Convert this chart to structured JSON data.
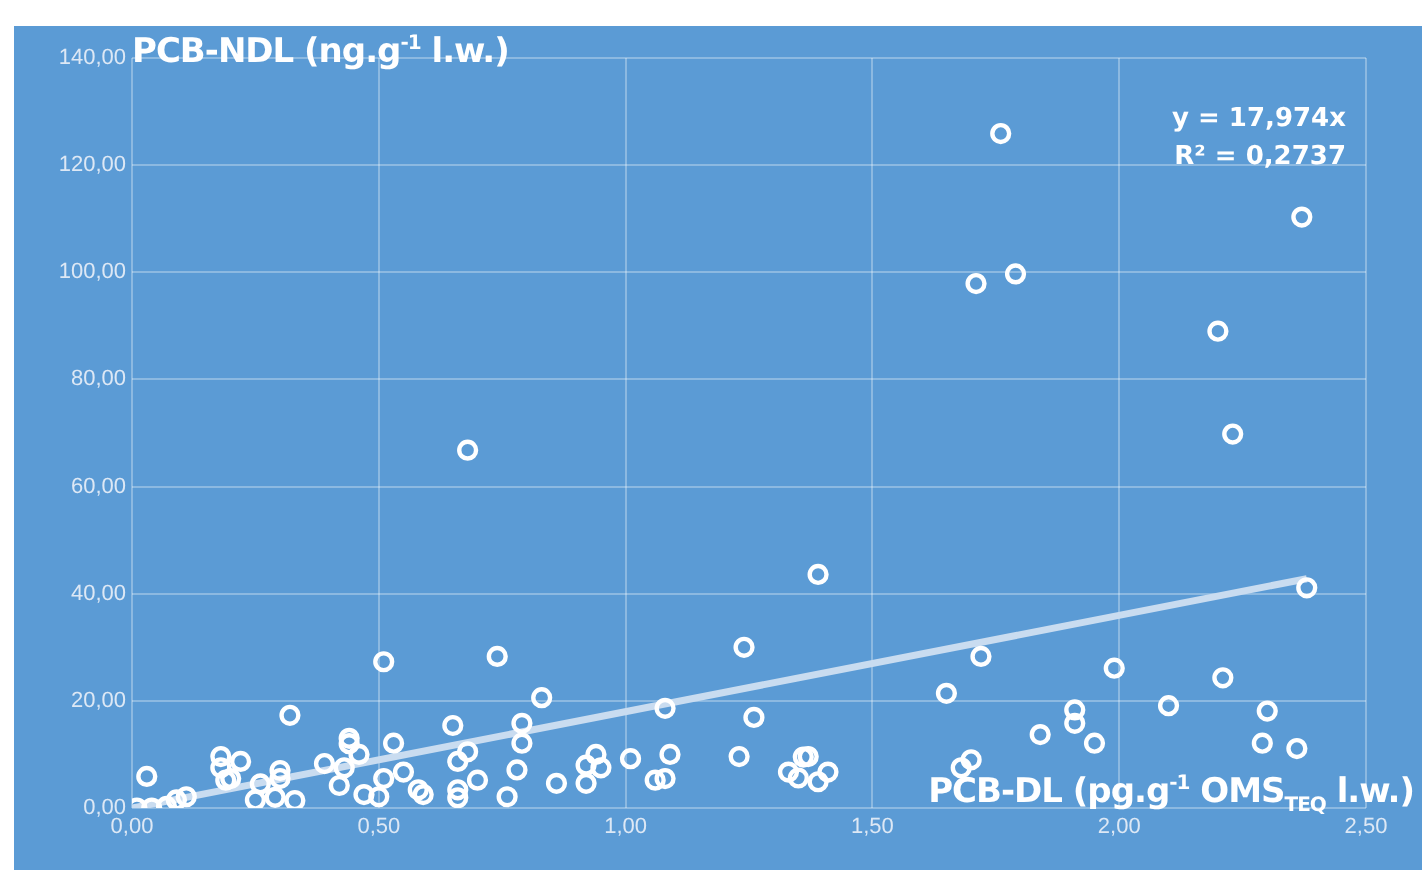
{
  "chart_data": {
    "type": "scatter",
    "xlabel": "PCB-DL (pg.g$^{-1}$ OMS$_{TEQ}$ l.w.)",
    "ylabel": "PCB-NDL (ng.g$^{-1}$ l.w.)",
    "annotations": [
      "y = 17,974x",
      "R² = 0,2737"
    ],
    "xlim": [
      0,
      2.5
    ],
    "xticks": [
      {
        "value": 0,
        "label": "0,00"
      },
      {
        "value": 0.5,
        "label": "0,50"
      },
      {
        "value": 1,
        "label": "1,00"
      },
      {
        "value": 1.5,
        "label": "1,50"
      },
      {
        "value": 2,
        "label": "2,00"
      },
      {
        "value": 2.5,
        "label": "2,50"
      }
    ],
    "ylim": [
      0,
      140
    ],
    "yticks": [
      {
        "value": 0,
        "label": "0,00"
      },
      {
        "value": 20,
        "label": "20,00"
      },
      {
        "value": 40,
        "label": "40,00"
      },
      {
        "value": 60,
        "label": "60,00"
      },
      {
        "value": 80,
        "label": "80,00"
      },
      {
        "value": 100,
        "label": "100,00"
      },
      {
        "value": 120,
        "label": "120,00"
      },
      {
        "value": 140,
        "label": "140,00"
      }
    ],
    "grid": true,
    "marker": "circle",
    "legend": false,
    "series": [
      {
        "type": "scatter",
        "color": "#ffffff",
        "x": [
          0.01,
          0.03,
          0.04,
          0.07,
          0.09,
          0.11,
          0.18,
          0.18,
          0.19,
          0.2,
          0.22,
          0.26,
          0.25,
          0.29,
          0.3,
          0.3,
          0.32,
          0.33,
          0.39,
          0.42,
          0.44,
          0.44,
          0.43,
          0.46,
          0.47,
          0.5,
          0.51,
          0.51,
          0.53,
          0.55,
          0.58,
          0.59,
          0.65,
          0.66,
          0.66,
          0.66,
          0.68,
          0.7,
          0.74,
          0.76,
          0.78,
          0.79,
          0.79,
          0.83,
          0.86,
          0.92,
          0.92,
          0.94,
          0.95,
          1.01,
          1.06,
          1.08,
          1.08,
          1.09,
          1.24,
          1.23,
          1.26,
          1.33,
          1.35,
          1.36,
          1.37,
          1.39,
          1.41,
          1.39,
          1.65,
          1.68,
          1.7,
          1.72,
          1.84,
          1.91,
          1.91,
          1.95,
          1.99,
          2.1,
          2.21,
          2.29,
          2.3,
          2.36,
          2.38,
          1.76,
          2.37,
          1.71,
          1.79,
          2.2,
          2.23,
          0.68
        ],
        "values": [
          0,
          5.9,
          0,
          0.3,
          1.5,
          2.1,
          9.6,
          7.5,
          5.2,
          5.5,
          8.7,
          4.5,
          1.5,
          2,
          7,
          5.5,
          17.3,
          1.4,
          8.3,
          4.2,
          13,
          12,
          7.5,
          10,
          2.5,
          2.1,
          5.5,
          27.3,
          12.1,
          6.7,
          3.4,
          2.5,
          15.4,
          8.7,
          3.4,
          1.9,
          10.5,
          5.2,
          28.3,
          2.1,
          7.1,
          12.1,
          15.8,
          20.6,
          4.6,
          4.6,
          8,
          10,
          7.5,
          9.2,
          5.2,
          5.5,
          18.6,
          10,
          30,
          9.6,
          16.9,
          6.7,
          5.6,
          9.5,
          9.6,
          4.9,
          6.7,
          43.6,
          21.4,
          7.5,
          9,
          28.3,
          13.7,
          18.3,
          15.8,
          12.1,
          26.1,
          19.1,
          24.3,
          12.1,
          18.1,
          11.1,
          41.1,
          125.9,
          110.3,
          97.9,
          99.7,
          89,
          69.8,
          66.8
        ]
      },
      {
        "type": "line",
        "color": "#c9dcf0",
        "marker": "none",
        "x": [
          0,
          2.38
        ],
        "values": [
          0,
          42.8
        ]
      }
    ]
  }
}
